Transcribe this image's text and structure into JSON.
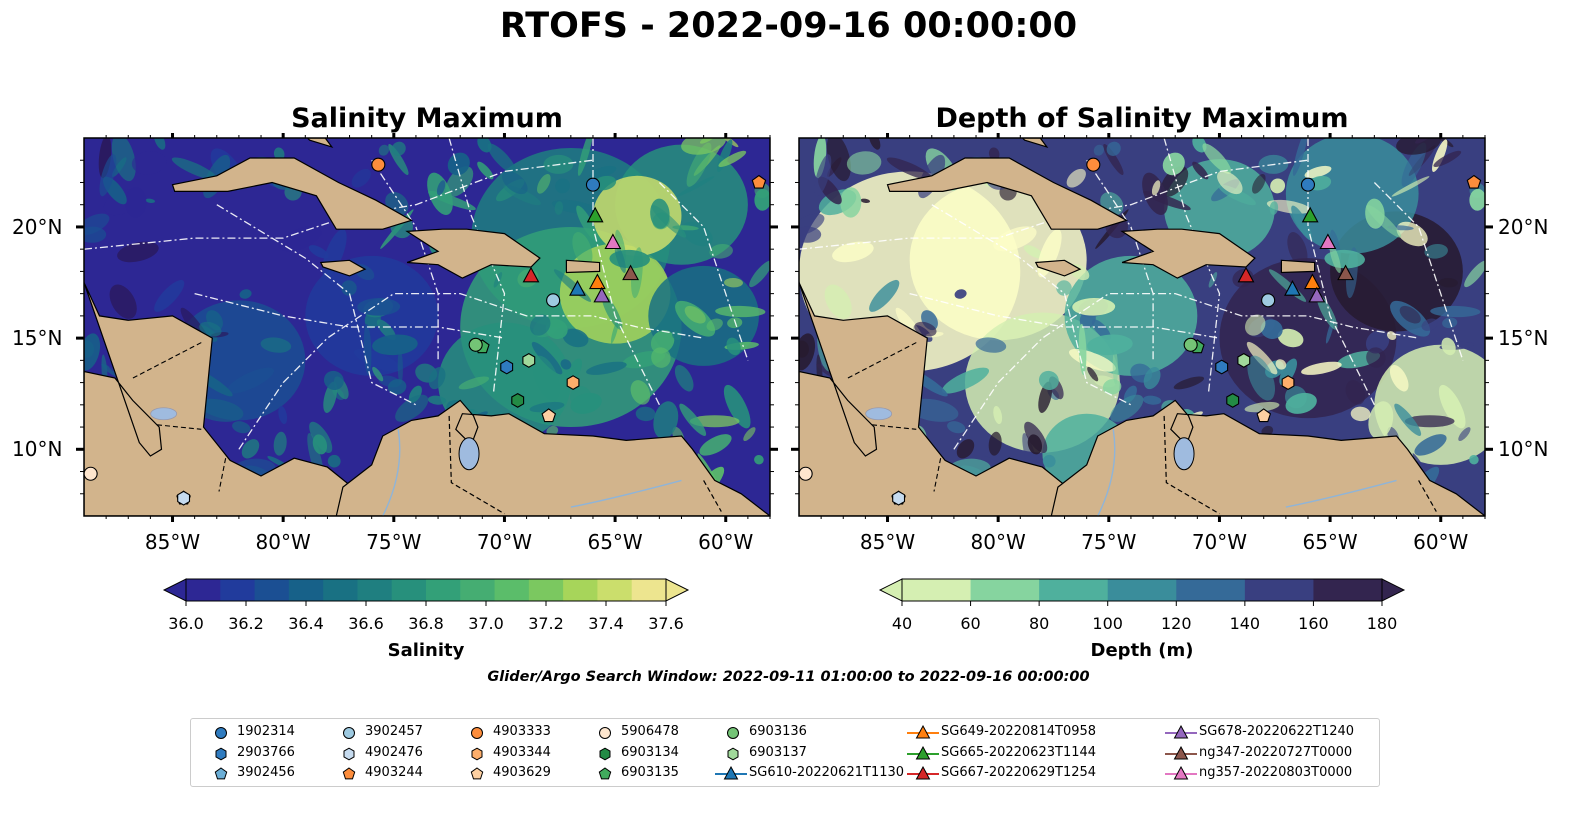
{
  "figure": {
    "title": "RTOFS - 2022-09-16 00:00:00",
    "search_window": "Glider/Argo Search Window: 2022-09-11 01:00:00 to 2022-09-16 00:00:00"
  },
  "colors": {
    "land": "#d2b48c",
    "lakes": "#9fbbdf",
    "salinity_scale": [
      "#2a1a5e",
      "#2d2794",
      "#213b9c",
      "#1b4f93",
      "#176189",
      "#197183",
      "#1f7f80",
      "#27907c",
      "#33a078",
      "#45ad72",
      "#5bbd6a",
      "#7bc860",
      "#a7d55a",
      "#cbde6c",
      "#ede58f"
    ],
    "depth_scale": [
      "#fdfec7",
      "#d5efb2",
      "#86d49f",
      "#4fb09d",
      "#3a8d9b",
      "#356a98",
      "#393f80",
      "#33254f",
      "#271a2f"
    ]
  },
  "panels": [
    {
      "title": "Salinity Maximum",
      "variable": "salinity",
      "colorbar": {
        "label": "Salinity",
        "ticks": [
          "36.0",
          "36.2",
          "36.4",
          "36.6",
          "36.8",
          "37.0",
          "37.2",
          "37.4",
          "37.6"
        ]
      }
    },
    {
      "title": "Depth of Salinity Maximum",
      "variable": "depth",
      "colorbar": {
        "label": "Depth (m)",
        "ticks": [
          "40",
          "60",
          "80",
          "100",
          "120",
          "140",
          "160",
          "180"
        ]
      }
    }
  ],
  "map": {
    "lon_range": [
      -89,
      -58
    ],
    "lat_range": [
      7,
      24
    ],
    "lon_ticks": [
      "85°W",
      "80°W",
      "75°W",
      "70°W",
      "65°W",
      "60°W"
    ],
    "lat_ticks": [
      "10°N",
      "15°N",
      "20°N"
    ],
    "grid": true
  },
  "observations": [
    {
      "id": "1902314",
      "kind": "argo",
      "marker": "circle",
      "color": "#2f7bbf",
      "lon": -66.0,
      "lat": 21.9
    },
    {
      "id": "2903766",
      "kind": "argo",
      "marker": "hexagon",
      "color": "#2f7bbf",
      "lon": -69.9,
      "lat": 13.7
    },
    {
      "id": "3902456",
      "kind": "argo",
      "marker": "pentagon",
      "color": "#6baed6",
      "lon": -84.5,
      "lat": 7.8
    },
    {
      "id": "3902457",
      "kind": "argo",
      "marker": "circle",
      "color": "#9ecae1",
      "lon": -67.8,
      "lat": 16.7
    },
    {
      "id": "4902476",
      "kind": "argo",
      "marker": "hexagon",
      "color": "#c6dbef",
      "lon": -84.5,
      "lat": 7.8
    },
    {
      "id": "4903244",
      "kind": "argo",
      "marker": "pentagon",
      "color": "#fd8d3c",
      "lon": -58.5,
      "lat": 22.0
    },
    {
      "id": "4903333",
      "kind": "argo",
      "marker": "circle",
      "color": "#fd8d3c",
      "lon": -75.7,
      "lat": 22.8
    },
    {
      "id": "4903344",
      "kind": "argo",
      "marker": "hexagon",
      "color": "#fdae6b",
      "lon": -66.9,
      "lat": 13.0
    },
    {
      "id": "4903629",
      "kind": "argo",
      "marker": "pentagon",
      "color": "#fdd0a2",
      "lon": -68.0,
      "lat": 11.5
    },
    {
      "id": "5906478",
      "kind": "argo",
      "marker": "circle",
      "color": "#fee6ce",
      "lon": -88.7,
      "lat": 8.9
    },
    {
      "id": "6903134",
      "kind": "argo",
      "marker": "hexagon",
      "color": "#238b45",
      "lon": -69.4,
      "lat": 12.2
    },
    {
      "id": "6903135",
      "kind": "argo",
      "marker": "pentagon",
      "color": "#41ab5d",
      "lon": -71.0,
      "lat": 14.6
    },
    {
      "id": "6903136",
      "kind": "argo",
      "marker": "circle",
      "color": "#74c476",
      "lon": -71.3,
      "lat": 14.7
    },
    {
      "id": "6903137",
      "kind": "argo",
      "marker": "hexagon",
      "color": "#a1d99b",
      "lon": -68.9,
      "lat": 14.0
    },
    {
      "id": "SG610-20220621T1130",
      "kind": "glider",
      "marker": "triangle",
      "color": "#1f77b4",
      "lon": -66.7,
      "lat": 17.2
    },
    {
      "id": "SG649-20220814T0958",
      "kind": "glider",
      "marker": "triangle",
      "color": "#ff7f0e",
      "lon": -65.8,
      "lat": 17.5
    },
    {
      "id": "SG665-20220623T1144",
      "kind": "glider",
      "marker": "triangle",
      "color": "#2ca02c",
      "lon": -65.9,
      "lat": 20.5
    },
    {
      "id": "SG667-20220629T1254",
      "kind": "glider",
      "marker": "triangle",
      "color": "#d62728",
      "lon": -68.8,
      "lat": 17.8
    },
    {
      "id": "SG678-20220622T1240",
      "kind": "glider",
      "marker": "triangle",
      "color": "#9467bd",
      "lon": -65.6,
      "lat": 16.9
    },
    {
      "id": "ng347-20220727T0000",
      "kind": "glider",
      "marker": "triangle",
      "color": "#8c564b",
      "lon": -64.3,
      "lat": 17.9
    },
    {
      "id": "ng357-20220803T0000",
      "kind": "glider",
      "marker": "triangle",
      "color": "#e377c2",
      "lon": -65.1,
      "lat": 19.3
    }
  ]
}
